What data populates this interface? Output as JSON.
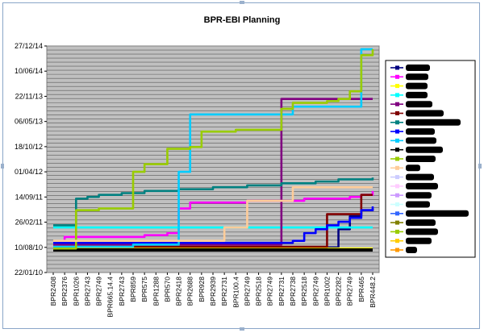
{
  "chart_data": {
    "type": "line",
    "title": "BPR-EBI Planning",
    "xlabel": "",
    "ylabel": "",
    "y_tick_labels": [
      "22/01/10",
      "10/08/10",
      "26/02/11",
      "14/09/11",
      "01/04/12",
      "18/10/12",
      "06/05/13",
      "22/11/13",
      "10/06/14",
      "27/12/14"
    ],
    "ylim": [
      "22/01/10",
      "27/12/14"
    ],
    "categories": [
      "BPR2408",
      "BPR2376",
      "BPR1026",
      "BPR2743",
      "BPR2749",
      "BPR665.14.4",
      "BPR2743",
      "BPR859",
      "BPR575",
      "BPR1288",
      "BPR570",
      "BPR2418",
      "BPR2688",
      "BPR928",
      "BPR2939",
      "BPR2731",
      "BPR100.4",
      "BPR2749",
      "BPR2518",
      "BPR2749",
      "BPR2731",
      "BPR2738",
      "BPR2518",
      "BPR2749",
      "BPR1002",
      "BPR2282",
      "BPR2749",
      "BPR465",
      "BPR448.2"
    ],
    "grid": true,
    "legend_position": "right",
    "legend_labels_redacted": true,
    "series": [
      {
        "color": "#000080",
        "marker": "diamond",
        "values": [
          "10/08/10",
          "10/08/10",
          "10/08/10",
          "10/08/10",
          "10/08/10",
          "10/08/10",
          "10/08/10",
          "10/08/10",
          "10/08/10",
          "10/08/10",
          "10/08/10",
          "10/08/10",
          "10/08/10",
          "10/08/10",
          "10/08/10",
          "10/08/10",
          "10/08/10",
          "10/08/10",
          "10/08/10",
          "10/08/10",
          "10/08/10",
          "10/08/10",
          "10/08/10",
          "10/08/10",
          "10/08/10",
          "01/01/11",
          "15/04/11",
          "01/06/11",
          "15/06/11"
        ]
      },
      {
        "color": "#ff00ff",
        "marker": "square",
        "values": [
          "28/09/10",
          "01/11/10",
          "01/11/10",
          "01/11/10",
          "01/11/10",
          "01/11/10",
          "01/11/10",
          "01/11/10",
          "15/11/10",
          "15/11/10",
          "01/12/10",
          "15/06/11",
          "01/08/11",
          "01/08/11",
          "01/08/11",
          "01/08/11",
          "01/08/11",
          "15/08/11",
          "15/08/11",
          "15/08/11",
          "15/08/11",
          "15/08/11",
          "01/09/11",
          "01/09/11",
          "01/09/11",
          "01/09/11",
          "15/09/11",
          "01/10/11",
          "01/11/11"
        ]
      },
      {
        "color": "#ffff00",
        "marker": "triangle",
        "values": [
          "01/08/10",
          "01/08/10",
          "01/08/10",
          "01/08/10",
          "01/08/10",
          "01/08/10",
          "01/08/10",
          "01/08/10",
          "01/08/10",
          "01/08/10",
          "01/08/10",
          "01/08/10",
          "01/08/10",
          "01/08/10",
          "01/08/10",
          "01/08/10",
          "01/08/10",
          "01/08/10",
          "01/08/10",
          "01/08/10",
          "01/08/10",
          "01/08/10",
          "01/08/10",
          "01/08/10",
          "01/08/10",
          "01/08/10",
          "01/08/10",
          "01/08/10",
          "01/08/10"
        ]
      },
      {
        "color": "#00ffff",
        "marker": "x",
        "values": [
          "15/01/11",
          "15/01/11",
          "15/01/11",
          "15/01/11",
          "15/01/11",
          "15/01/11",
          "15/01/11",
          "15/01/11",
          "15/01/11",
          "15/01/11",
          "15/01/11",
          "15/01/11",
          "15/01/11",
          "15/01/11",
          "15/01/11",
          "15/01/11",
          "15/01/11",
          "15/01/11",
          "15/01/11",
          "15/01/11",
          "15/01/11",
          "15/01/11",
          "15/01/11",
          "15/01/11",
          "15/01/11",
          "15/01/11",
          "15/01/11",
          "15/01/11",
          "15/01/11"
        ]
      },
      {
        "color": "#800080",
        "marker": "star",
        "values": [
          "01/09/10",
          "01/09/10",
          "01/09/10",
          "01/09/10",
          "01/09/10",
          "01/09/10",
          "01/09/10",
          "01/09/10",
          "01/09/10",
          "01/09/10",
          "01/09/10",
          "01/09/10",
          "01/09/10",
          "01/09/10",
          "01/09/10",
          "01/09/10",
          "01/09/10",
          "01/09/10",
          "01/09/10",
          "01/09/10",
          "01/11/13",
          "01/11/13",
          "01/11/13",
          "01/11/13",
          "01/11/13",
          "01/11/13",
          "01/11/13",
          "01/11/13",
          "01/11/13"
        ]
      },
      {
        "color": "#800000",
        "marker": "circle",
        "values": [
          "15/08/10",
          "15/08/10",
          "15/08/10",
          "15/08/10",
          "15/08/10",
          "15/08/10",
          "15/08/10",
          "15/08/10",
          "15/08/10",
          "15/08/10",
          "15/08/10",
          "15/08/10",
          "15/08/10",
          "15/08/10",
          "15/08/10",
          "15/08/10",
          "15/08/10",
          "15/08/10",
          "15/08/10",
          "15/08/10",
          "15/08/10",
          "15/08/10",
          "15/08/10",
          "15/08/10",
          "01/05/11",
          "01/05/11",
          "01/05/11",
          "01/10/11",
          "01/10/11"
        ]
      },
      {
        "color": "#008080",
        "marker": "plus",
        "values": [
          "01/02/11",
          "01/02/11",
          "01/09/11",
          "15/09/11",
          "01/10/11",
          "01/10/11",
          "15/10/11",
          "15/10/11",
          "01/11/11",
          "01/11/11",
          "01/11/11",
          "15/11/11",
          "15/11/11",
          "15/11/11",
          "01/12/11",
          "01/12/11",
          "01/12/11",
          "15/12/11",
          "15/12/11",
          "15/12/11",
          "01/01/12",
          "01/01/12",
          "01/01/12",
          "15/01/12",
          "15/01/12",
          "01/02/12",
          "01/02/12",
          "01/02/12",
          "15/02/12"
        ]
      },
      {
        "color": "#0000ff",
        "marker": "none",
        "values": [
          "15/09/10",
          "15/09/10",
          "15/09/10",
          "15/09/10",
          "15/09/10",
          "15/09/10",
          "15/09/10",
          "15/09/10",
          "15/09/10",
          "15/09/10",
          "15/09/10",
          "15/09/10",
          "15/09/10",
          "15/09/10",
          "15/09/10",
          "15/09/10",
          "15/09/10",
          "15/09/10",
          "15/09/10",
          "15/09/10",
          "15/09/10",
          "01/10/10",
          "01/12/10",
          "01/01/11",
          "01/02/11",
          "01/03/11",
          "01/04/11",
          "01/06/11",
          "01/07/11"
        ]
      },
      {
        "color": "#00ccff",
        "marker": "none",
        "values": [
          "15/08/10",
          "15/08/10",
          "15/08/10",
          "15/08/10",
          "15/08/10",
          "15/08/10",
          "15/08/10",
          "01/09/10",
          "01/09/10",
          "01/09/10",
          "01/09/10",
          "01/04/12",
          "01/07/13",
          "01/07/13",
          "01/07/13",
          "01/07/13",
          "01/07/13",
          "01/07/13",
          "01/07/13",
          "01/07/13",
          "01/07/13",
          "01/09/13",
          "01/09/13",
          "01/09/13",
          "01/09/13",
          "01/09/13",
          "01/09/13",
          "01/12/14",
          "01/12/14"
        ]
      },
      {
        "color": "#000000",
        "marker": "diamond",
        "values": [
          "20/07/10",
          "20/07/10",
          "20/07/10",
          "20/07/10",
          "20/07/10",
          "20/07/10",
          "20/07/10",
          "20/07/10",
          "20/07/10",
          "20/07/10",
          "20/07/10",
          "20/07/10",
          "20/07/10",
          "20/07/10",
          "20/07/10",
          "20/07/10",
          "20/07/10",
          "20/07/10",
          "20/07/10",
          "20/07/10",
          "20/07/10",
          "20/07/10",
          "20/07/10",
          "20/07/10",
          "20/07/10",
          "20/07/10",
          "20/07/10",
          "20/07/10",
          "20/07/10"
        ]
      },
      {
        "color": "#99cc00",
        "marker": "square",
        "values": [
          "01/08/10",
          "01/08/10",
          "01/06/11",
          "01/06/11",
          "15/06/11",
          "15/06/11",
          "15/06/11",
          "01/04/12",
          "01/06/12",
          "01/06/12",
          "01/10/12",
          "01/10/12",
          "15/10/12",
          "15/02/13",
          "15/02/13",
          "15/02/13",
          "01/03/13",
          "01/03/13",
          "01/03/13",
          "01/03/13",
          "15/08/13",
          "01/10/13",
          "01/10/13",
          "01/10/13",
          "15/10/13",
          "01/11/13",
          "01/01/14",
          "15/10/14",
          "01/12/14"
        ]
      },
      {
        "color": "#ffcc99",
        "marker": "triangle",
        "values": [
          "01/10/10",
          "01/10/10",
          "01/10/10",
          "01/10/10",
          "01/10/10",
          "01/10/10",
          "01/10/10",
          "01/10/10",
          "01/10/10",
          "01/10/10",
          "01/10/10",
          "01/10/10",
          "01/10/10",
          "01/10/10",
          "01/10/10",
          "15/01/11",
          "15/01/11",
          "15/08/11",
          "15/08/11",
          "15/08/11",
          "15/08/11",
          "01/12/11",
          "01/12/11",
          "01/12/11",
          "01/12/11",
          "01/12/11",
          "01/12/11",
          "01/12/11",
          "01/12/11"
        ]
      }
    ]
  }
}
